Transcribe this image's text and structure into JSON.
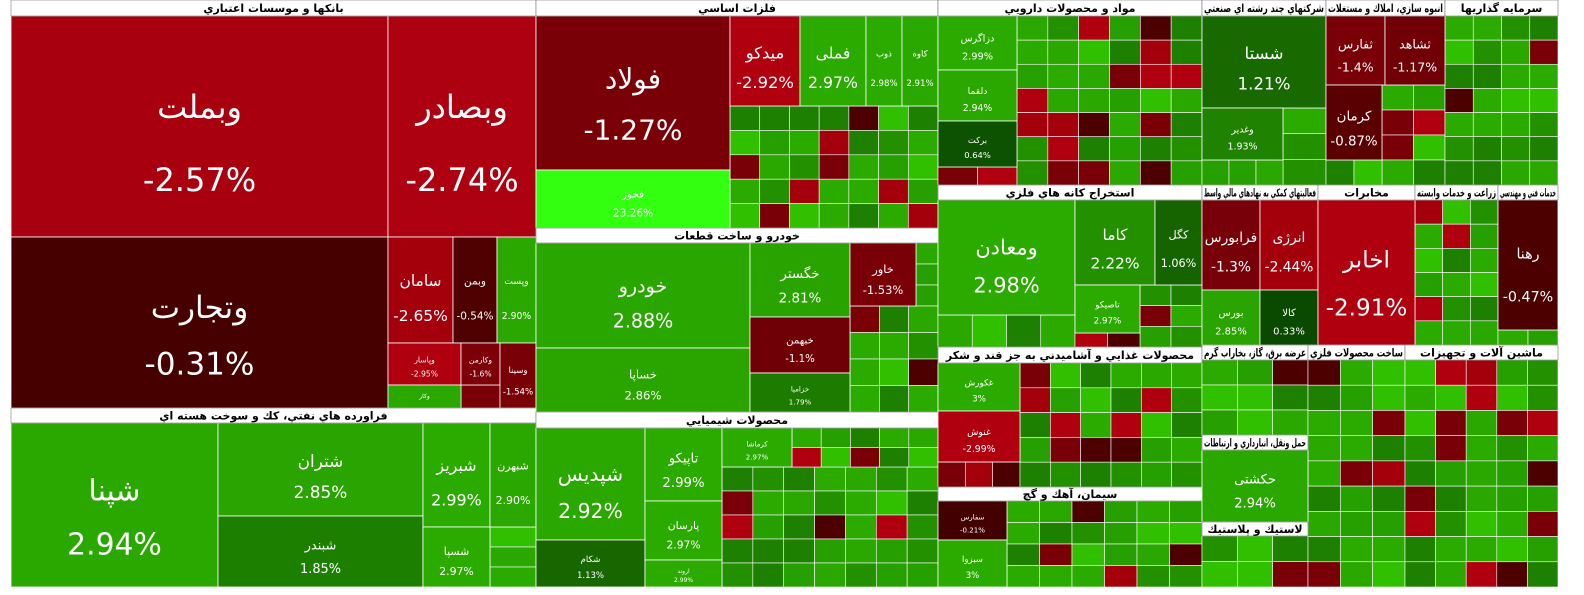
{
  "sectors": [
    {
      "title": "بانکها و موسسات اعتباري",
      "tiles": [
        {
          "name": "وبملت",
          "change": "-2.57%",
          "color": "#a8000e"
        },
        {
          "name": "وبصادر",
          "change": "-2.74%",
          "color": "#ad0010"
        },
        {
          "name": "وتجارت",
          "change": "-0.31%",
          "color": "#470000"
        },
        {
          "name": "سامان",
          "change": "-2.65%",
          "color": "#a3000c"
        },
        {
          "name": "وبمن",
          "change": "-0.54%",
          "color": "#4f0000"
        },
        {
          "name": "وپست",
          "change": "2.90%",
          "color": "#2aa800"
        },
        {
          "name": "وپاسار",
          "change": "-2.95%",
          "color": "#b0000f"
        },
        {
          "name": "وکارمن",
          "change": "-1.6%",
          "color": "#7d0008"
        },
        {
          "name": "وسینا",
          "change": "-1.54%",
          "color": "#7a0008"
        },
        {
          "name": "وکار",
          "color": "#2aa800"
        }
      ]
    },
    {
      "title": "فراورده هاي نفتي، كك و سوخت هسته اي",
      "tiles": [
        {
          "name": "شپنا",
          "change": "2.94%",
          "color": "#2aa800"
        },
        {
          "name": "شتران",
          "change": "2.85%",
          "color": "#2aa400"
        },
        {
          "name": "شبندر",
          "change": "1.85%",
          "color": "#1d7f00"
        },
        {
          "name": "شبریز",
          "change": "2.99%",
          "color": "#2bab00"
        },
        {
          "name": "شبهرن",
          "change": "2.90%",
          "color": "#2aa800"
        },
        {
          "name": "شسپا",
          "change": "2.97%",
          "color": "#2baa00"
        }
      ]
    },
    {
      "title": "فلزات اساسي",
      "tiles": [
        {
          "name": "فولاد",
          "change": "-1.27%",
          "color": "#7a0008"
        },
        {
          "name": "فخوز",
          "change": "23.26%",
          "color": "#33ff11"
        },
        {
          "name": "میدکو",
          "change": "-2.92%",
          "color": "#b0000f"
        },
        {
          "name": "فملی",
          "change": "2.97%",
          "color": "#2baa00"
        },
        {
          "name": "ذوب",
          "change": "2.98%",
          "color": "#2baa00"
        },
        {
          "name": "کاوه",
          "change": "2.91%",
          "color": "#2aa800"
        }
      ]
    },
    {
      "title": "خودرو و ساخت قطعات",
      "tiles": [
        {
          "name": "خودرو",
          "change": "2.88%",
          "color": "#2aa600"
        },
        {
          "name": "خساپا",
          "change": "2.86%",
          "color": "#2aa500"
        },
        {
          "name": "خگستر",
          "change": "2.81%",
          "color": "#29a300"
        },
        {
          "name": "خاور",
          "change": "-1.53%",
          "color": "#7a0008"
        },
        {
          "name": "خبهمن",
          "change": "-1.1%",
          "color": "#6e0006"
        },
        {
          "name": "خزامیا",
          "change": "1.79%",
          "color": "#1d7c00"
        }
      ]
    },
    {
      "title": "محصولات شيميايي",
      "tiles": [
        {
          "name": "شپدیس",
          "change": "2.92%",
          "color": "#2aa800"
        },
        {
          "name": "شکام",
          "change": "1.13%",
          "color": "#176600"
        },
        {
          "name": "تاپیکو",
          "change": "2.99%",
          "color": "#2bab00"
        },
        {
          "name": "پارسان",
          "change": "2.97%",
          "color": "#2baa00"
        },
        {
          "name": "اروند",
          "change": "2.99%",
          "color": "#2bab00"
        },
        {
          "name": "کرماشا",
          "change": "2.97%",
          "color": "#2baa00"
        }
      ]
    },
    {
      "title": "مواد و محصولات دارويي",
      "tiles": [
        {
          "name": "دزاگرس",
          "change": "2.99%",
          "color": "#2bab00"
        },
        {
          "name": "دلقما",
          "change": "2.94%",
          "color": "#2aa800"
        },
        {
          "name": "برکت",
          "change": "0.64%",
          "color": "#0d5200"
        }
      ]
    },
    {
      "title": "شرکتهاي چند رشته اي صنعتي",
      "tiles": [
        {
          "name": "شستا",
          "change": "1.21%",
          "color": "#186a00"
        },
        {
          "name": "وغدیر",
          "change": "1.93%",
          "color": "#1f8200"
        }
      ]
    },
    {
      "title": "انبوه سازي، املاك و مستغلات",
      "tiles": [
        {
          "name": "ثفارس",
          "change": "-1.4%",
          "color": "#7a0008"
        },
        {
          "name": "ثشاهد",
          "change": "-1.17%",
          "color": "#700006"
        },
        {
          "name": "کرمان",
          "change": "-0.87%",
          "color": "#5a0002"
        }
      ]
    },
    {
      "title": "سرمايه گذاريها",
      "tiles": []
    },
    {
      "title": "استخراج كانه هاي فلزي",
      "tiles": [
        {
          "name": "ومعادن",
          "change": "2.98%",
          "color": "#2baa00"
        },
        {
          "name": "کاما",
          "change": "2.22%",
          "color": "#239000"
        },
        {
          "name": "کگل",
          "change": "1.06%",
          "color": "#166400"
        },
        {
          "name": "تاصيكو",
          "change": "2.97%",
          "color": "#2baa00"
        }
      ]
    },
    {
      "title": "فعاليتهاي كمكي به نهادهاي مالي واسط",
      "tiles": [
        {
          "name": "فرابورس",
          "change": "-1.3%",
          "color": "#780008"
        },
        {
          "name": "انرژی",
          "change": "-2.44%",
          "color": "#a3000c"
        },
        {
          "name": "بورس",
          "change": "2.85%",
          "color": "#2aa400"
        },
        {
          "name": "کالا",
          "change": "0.33%",
          "color": "#0a4a00"
        }
      ]
    },
    {
      "title": "مخابرات",
      "tiles": [
        {
          "name": "اخابر",
          "change": "-2.91%",
          "color": "#b0000f"
        }
      ]
    },
    {
      "title": "زراعت و خدمات وابسته",
      "tiles": []
    },
    {
      "title": "خدمات فني و مهندسي",
      "tiles": [
        {
          "name": "رهنا",
          "change": "-0.47%",
          "color": "#4d0000"
        }
      ]
    },
    {
      "title": "محصولات غذايي و آشاميدني به جز قند و شكر",
      "tiles": [
        {
          "name": "غکورش",
          "change": "3%",
          "color": "#2bab00"
        },
        {
          "name": "غنوش",
          "change": "-2.99%",
          "color": "#b0000f"
        }
      ]
    },
    {
      "title": "سيمان، آهك و گچ",
      "tiles": [
        {
          "name": "سفارس",
          "change": "-0.21%",
          "color": "#420000"
        },
        {
          "name": "سبزوا",
          "change": "3%",
          "color": "#2bab00"
        }
      ]
    },
    {
      "title": "عرضه برق، گاز، بخاراب گرم",
      "tiles": []
    },
    {
      "title": "حمل ونقل، انبارداري و ارتباطات",
      "tiles": [
        {
          "name": "حکشتی",
          "change": "2.94%",
          "color": "#2aa800"
        }
      ]
    },
    {
      "title": "لاستيك و پلاستيك",
      "tiles": []
    },
    {
      "title": "ساخت محصولات فلزي",
      "tiles": []
    },
    {
      "title": "ماشين آلات و تجهيزات",
      "tiles": []
    }
  ]
}
